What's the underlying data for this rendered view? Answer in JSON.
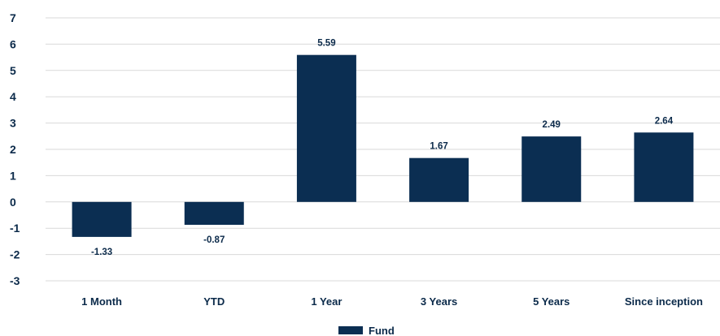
{
  "chart_data": {
    "type": "bar",
    "categories": [
      "1 Month",
      "YTD",
      "1 Year",
      "3 Years",
      "5 Years",
      "Since inception"
    ],
    "series": [
      {
        "name": "Fund",
        "values": [
          -1.33,
          -0.87,
          5.59,
          1.67,
          2.49,
          2.64
        ],
        "color": "#0b2e52"
      }
    ],
    "data_labels": [
      "-1.33",
      "-0.87",
      "5.59",
      "1.67",
      "2.49",
      "2.64"
    ],
    "ylim": [
      -3,
      7
    ],
    "yticks": [
      -3,
      -2,
      -1,
      0,
      1,
      2,
      3,
      4,
      5,
      6,
      7
    ],
    "grid": true,
    "legend": "bottom-center"
  },
  "colors": {
    "bar": "#0b2e52",
    "grid": "#d9d9d9",
    "text": "#0b2a4a"
  }
}
